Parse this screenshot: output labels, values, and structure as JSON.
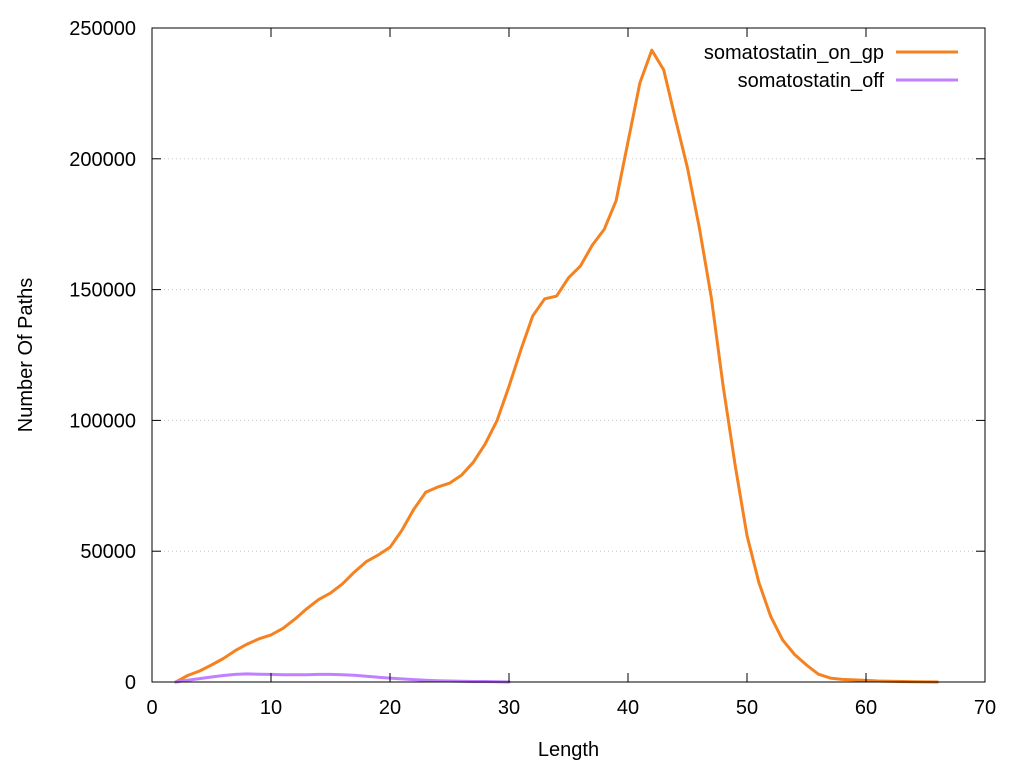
{
  "chart_data": {
    "type": "line",
    "title": "",
    "xlabel": "Length",
    "ylabel": "Number Of Paths",
    "xlim": [
      0,
      70
    ],
    "ylim": [
      0,
      250000
    ],
    "xticks": [
      0,
      10,
      20,
      30,
      40,
      50,
      60,
      70
    ],
    "yticks": [
      0,
      50000,
      100000,
      150000,
      200000,
      250000
    ],
    "grid": "horizontal dotted",
    "legend_position": "top-right",
    "series": [
      {
        "name": "somatostatin_on_gp",
        "color": "#f58220",
        "x": [
          2,
          3,
          4,
          5,
          6,
          7,
          8,
          9,
          10,
          11,
          12,
          13,
          14,
          15,
          16,
          17,
          18,
          19,
          20,
          21,
          22,
          23,
          24,
          25,
          26,
          27,
          28,
          29,
          30,
          31,
          32,
          33,
          34,
          35,
          36,
          37,
          38,
          39,
          40,
          41,
          42,
          43,
          44,
          45,
          46,
          47,
          48,
          49,
          50,
          51,
          52,
          53,
          54,
          55,
          56,
          57,
          58,
          59,
          60,
          61,
          62,
          63,
          64,
          65,
          66
        ],
        "values": [
          0,
          2500,
          4200,
          6500,
          9000,
          12000,
          14500,
          16500,
          18000,
          20500,
          24000,
          28000,
          31500,
          34000,
          37500,
          42000,
          46000,
          48500,
          51500,
          58000,
          66000,
          72500,
          74500,
          76000,
          79000,
          84000,
          91000,
          100000,
          113000,
          127000,
          140000,
          146500,
          147500,
          154500,
          159000,
          167000,
          173000,
          184000,
          206500,
          229000,
          241500,
          234000,
          215000,
          196500,
          173500,
          147000,
          113000,
          83000,
          56000,
          38000,
          25000,
          16000,
          10500,
          6500,
          3000,
          1500,
          1000,
          800,
          600,
          400,
          300,
          200,
          100,
          50,
          0
        ]
      },
      {
        "name": "somatostatin_off",
        "color": "#c080ff",
        "x": [
          2,
          3,
          4,
          5,
          6,
          7,
          8,
          9,
          10,
          11,
          12,
          13,
          14,
          15,
          16,
          17,
          18,
          19,
          20,
          21,
          22,
          23,
          24,
          25,
          26,
          27,
          28,
          29,
          30
        ],
        "values": [
          0,
          700,
          1300,
          1900,
          2500,
          2900,
          3100,
          3000,
          2900,
          2800,
          2800,
          2800,
          2900,
          2900,
          2800,
          2600,
          2200,
          1800,
          1500,
          1200,
          900,
          700,
          500,
          400,
          300,
          200,
          200,
          100,
          0
        ]
      }
    ]
  }
}
